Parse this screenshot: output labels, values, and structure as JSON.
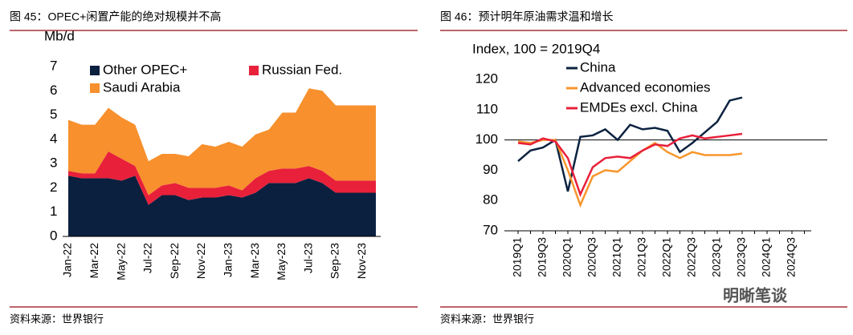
{
  "chart_data": [
    {
      "type": "stacked_area",
      "title": "图 45：OPEC+闲置产能的绝对规模并不高",
      "ylabel": "Mb/d",
      "source": "资料来源：世界银行",
      "categories": [
        "Jan-22",
        null,
        "Mar-22",
        null,
        "May-22",
        null,
        "Jul-22",
        null,
        "Sep-22",
        null,
        "Nov-22",
        null,
        "Jan-23",
        null,
        "Mar-23",
        null,
        "May-23",
        null,
        "Jul-23",
        null,
        "Sep-23",
        null,
        "Nov-23",
        null
      ],
      "series": [
        {
          "name": "Other OPEC+",
          "color": "#0b1f3f",
          "values": [
            2.5,
            2.4,
            2.4,
            2.4,
            2.3,
            2.5,
            1.3,
            1.7,
            1.7,
            1.5,
            1.6,
            1.6,
            1.7,
            1.6,
            1.8,
            2.2,
            2.2,
            2.2,
            2.4,
            2.2,
            1.8,
            1.8,
            1.8,
            1.8
          ]
        },
        {
          "name": "Russian Fed.",
          "color": "#e8203a",
          "values": [
            0.2,
            0.2,
            0.2,
            1.1,
            0.9,
            0.4,
            0.4,
            0.4,
            0.5,
            0.5,
            0.4,
            0.4,
            0.4,
            0.3,
            0.6,
            0.5,
            0.6,
            0.6,
            0.5,
            0.5,
            0.5,
            0.5,
            0.5,
            0.5
          ]
        },
        {
          "name": "Saudi Arabia",
          "color": "#f7902d",
          "values": [
            2.1,
            2.0,
            2.0,
            1.8,
            1.7,
            1.7,
            1.4,
            1.3,
            1.2,
            1.3,
            1.8,
            1.7,
            1.8,
            1.8,
            1.8,
            1.7,
            2.3,
            2.3,
            3.2,
            3.3,
            3.1,
            3.1,
            3.1,
            3.1
          ]
        }
      ],
      "ylim": [
        0,
        7
      ],
      "yticks": [
        0,
        1,
        2,
        3,
        4,
        5,
        6,
        7
      ]
    },
    {
      "type": "line",
      "title": "图 46：预计明年原油需求温和增长",
      "ylabel": "Index, 100 = 2019Q4",
      "source": "资料来源：世界银行",
      "watermark": "明晰笔谈",
      "categories": [
        "2019Q1",
        null,
        "2019Q3",
        null,
        "2020Q1",
        null,
        "2020Q3",
        null,
        "2021Q1",
        null,
        "2021Q3",
        null,
        "2022Q1",
        null,
        "2022Q3",
        null,
        "2023Q1",
        null,
        "2023Q3",
        null,
        "2024Q1",
        null,
        "2024Q3",
        null
      ],
      "series": [
        {
          "name": "China",
          "color": "#0c2340",
          "values": [
            93,
            96.5,
            97.5,
            100,
            83,
            101,
            101.5,
            103.5,
            100,
            105,
            103.5,
            104,
            103,
            96,
            99,
            102.5,
            106,
            113,
            114,
            null,
            null,
            null,
            null,
            null
          ]
        },
        {
          "name": "Advanced economies",
          "color": "#f7962d",
          "values": [
            99.5,
            99,
            100,
            100,
            90,
            78.5,
            88,
            90,
            89.5,
            93,
            96.5,
            99,
            96,
            94,
            96,
            95,
            95,
            95,
            95.5,
            null,
            null,
            null,
            null,
            null
          ]
        },
        {
          "name": "EMDEs excl. China",
          "color": "#e8203a",
          "values": [
            99,
            98.5,
            100.5,
            99.5,
            94,
            82,
            91,
            94,
            94.5,
            94,
            96.5,
            98.5,
            98,
            100.5,
            101.5,
            100.5,
            101,
            101.5,
            102,
            null,
            null,
            null,
            null,
            null
          ]
        }
      ],
      "reference_line": 100,
      "ylim": [
        70,
        120
      ],
      "yticks": [
        70,
        80,
        90,
        100,
        110,
        120
      ]
    }
  ]
}
